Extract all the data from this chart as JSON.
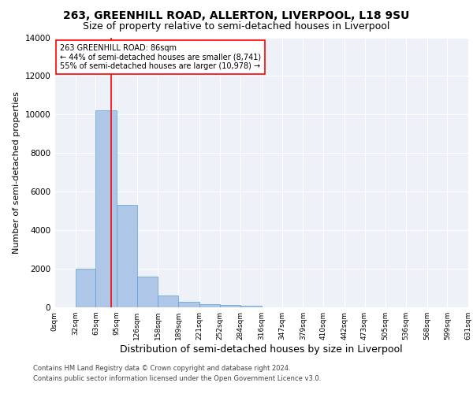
{
  "title1": "263, GREENHILL ROAD, ALLERTON, LIVERPOOL, L18 9SU",
  "title2": "Size of property relative to semi-detached houses in Liverpool",
  "xlabel": "Distribution of semi-detached houses by size in Liverpool",
  "ylabel": "Number of semi-detached properties",
  "footnote1": "Contains HM Land Registry data © Crown copyright and database right 2024.",
  "footnote2": "Contains public sector information licensed under the Open Government Licence v3.0.",
  "bar_edges": [
    0,
    32,
    63,
    95,
    126,
    158,
    189,
    221,
    252,
    284,
    316,
    347,
    379,
    410,
    442,
    473,
    505,
    536,
    568,
    599,
    631
  ],
  "bar_values": [
    0,
    2000,
    10200,
    5300,
    1600,
    600,
    280,
    175,
    130,
    100,
    0,
    0,
    0,
    0,
    0,
    0,
    0,
    0,
    0,
    0
  ],
  "bar_color": "#aec6e8",
  "bar_edgecolor": "#5a9fd4",
  "property_size": 86,
  "property_line_color": "red",
  "annotation_text1": "263 GREENHILL ROAD: 86sqm",
  "annotation_text2": "← 44% of semi-detached houses are smaller (8,741)",
  "annotation_text3": "55% of semi-detached houses are larger (10,978) →",
  "annotation_box_color": "red",
  "ylim": [
    0,
    14000
  ],
  "yticks": [
    0,
    2000,
    4000,
    6000,
    8000,
    10000,
    12000,
    14000
  ],
  "background_color": "#eef2f8",
  "grid_color": "white",
  "title1_fontsize": 10,
  "title2_fontsize": 9,
  "xlabel_fontsize": 9,
  "ylabel_fontsize": 8,
  "annot_fontsize": 7,
  "tick_fontsize": 6.5,
  "footnote_fontsize": 6,
  "tick_labels": [
    "0sqm",
    "32sqm",
    "63sqm",
    "95sqm",
    "126sqm",
    "158sqm",
    "189sqm",
    "221sqm",
    "252sqm",
    "284sqm",
    "316sqm",
    "347sqm",
    "379sqm",
    "410sqm",
    "442sqm",
    "473sqm",
    "505sqm",
    "536sqm",
    "568sqm",
    "599sqm",
    "631sqm"
  ]
}
